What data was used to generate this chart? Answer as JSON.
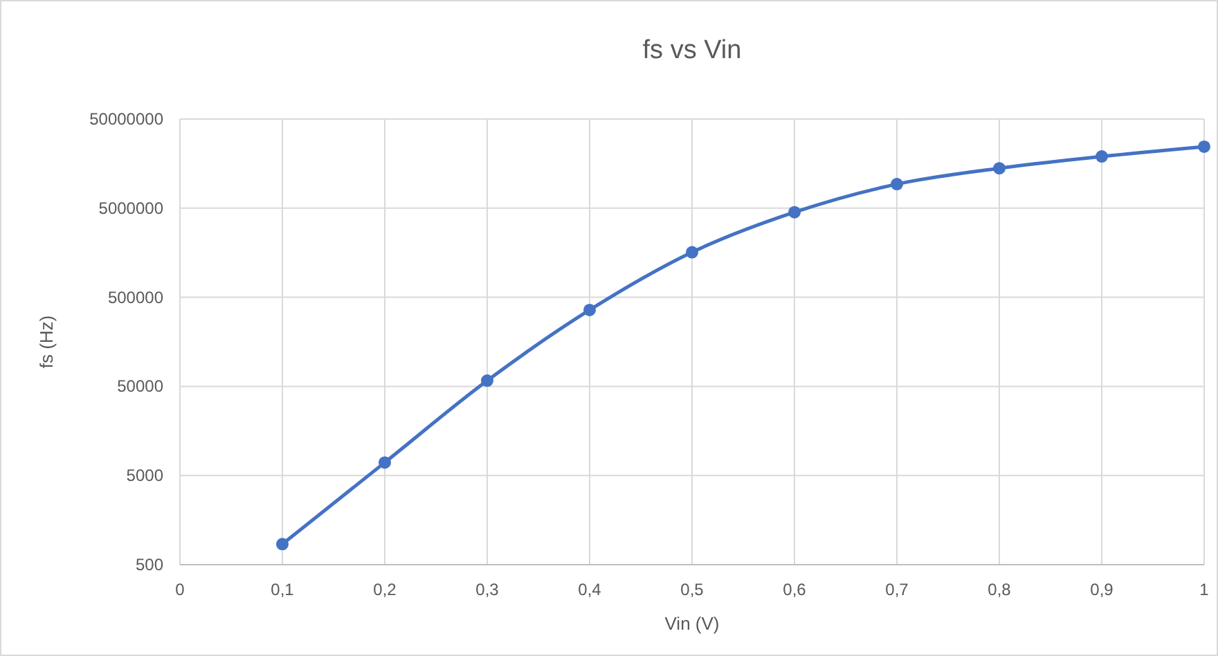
{
  "chart_data": {
    "type": "line",
    "title": "fs vs Vin",
    "xlabel": "Vin (V)",
    "ylabel": "fs (Hz)",
    "x": [
      0.1,
      0.2,
      0.3,
      0.4,
      0.5,
      0.6,
      0.7,
      0.8,
      0.9,
      1
    ],
    "series": [
      {
        "color": "#4472c4",
        "values": [
          850,
          7000,
          58000,
          360000,
          1600000,
          4500000,
          9300000,
          14000000,
          19000000,
          24500000
        ]
      }
    ],
    "xlim": [
      0,
      1
    ],
    "xticks": [
      0,
      {
        "value": 0.1,
        "label": "0,1"
      },
      {
        "value": 0.2,
        "label": "0,2"
      },
      {
        "value": 0.3,
        "label": "0,3"
      },
      {
        "value": 0.4,
        "label": "0,4"
      },
      {
        "value": 0.5,
        "label": "0,5"
      },
      {
        "value": 0.6,
        "label": "0,6"
      },
      {
        "value": 0.7,
        "label": "0,7"
      },
      {
        "value": 0.8,
        "label": "0,8"
      },
      {
        "value": 0.9,
        "label": "0,9"
      },
      1
    ],
    "ylim": [
      500,
      50000000
    ],
    "yticks": [
      500,
      5000,
      50000,
      500000,
      5000000,
      50000000
    ],
    "log": true,
    "grid": true,
    "marker": "circle",
    "line_style": "solid"
  }
}
